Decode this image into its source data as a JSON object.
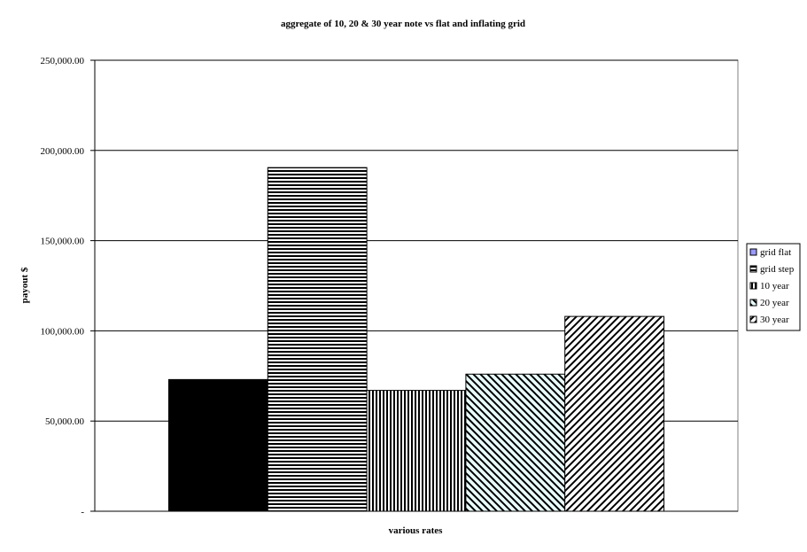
{
  "chart_data": {
    "type": "bar",
    "title": "aggregate of 10, 20 & 30 year note vs flat and inflating grid",
    "xlabel": "various rates",
    "ylabel": "payout $",
    "ylim": [
      0,
      250000
    ],
    "yticks": [
      0,
      50000,
      100000,
      150000,
      200000,
      250000
    ],
    "ytick_labels": [
      "-",
      "50,000.00",
      "100,000.00",
      "150,000.00",
      "200,000.00",
      "250,000.00"
    ],
    "grid": true,
    "legend_position": "right",
    "series": [
      {
        "name": "grid flat",
        "value": 73000,
        "pattern": "solid-black"
      },
      {
        "name": "grid step",
        "value": 190500,
        "pattern": "horizontal-lines"
      },
      {
        "name": "10 year",
        "value": 67000,
        "pattern": "vertical-lines"
      },
      {
        "name": "20 year",
        "value": 76000,
        "pattern": "diagonal-down"
      },
      {
        "name": "30 year",
        "value": 108000,
        "pattern": "diagonal-up"
      }
    ]
  }
}
